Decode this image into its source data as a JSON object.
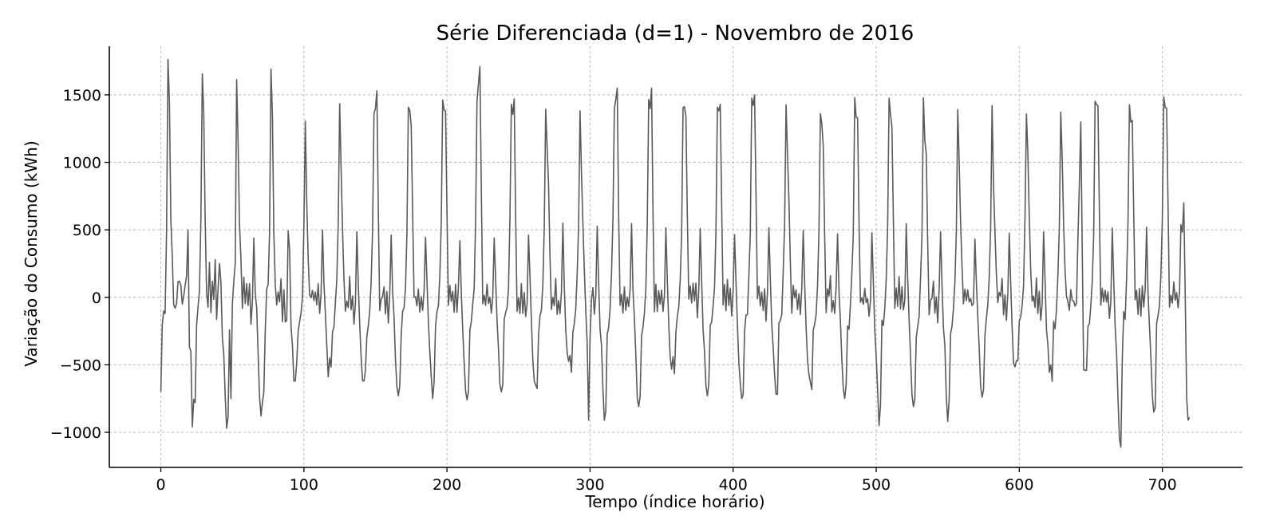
{
  "chart_data": {
    "type": "line",
    "title": "Série Diferenciada (d=1) - Novembro de 2016",
    "xlabel": "Tempo (índice horário)",
    "ylabel": "Variação do Consumo (kWh)",
    "xlim": [
      -36,
      756
    ],
    "ylim": [
      -1260,
      1860
    ],
    "xticks": [
      0,
      100,
      200,
      300,
      400,
      500,
      600,
      700
    ],
    "yticks": [
      -1000,
      -500,
      0,
      500,
      1000,
      1500
    ],
    "ytick_labels": [
      "−1000",
      "−500",
      "0",
      "500",
      "1000",
      "1500"
    ],
    "grid": true,
    "line_color": "#5a5a5a",
    "series": [
      {
        "pattern_x": [
          0,
          1,
          2,
          3,
          4,
          5,
          6,
          7,
          8,
          9,
          10,
          11,
          12,
          13,
          14,
          15,
          16,
          17,
          18,
          19,
          20,
          21,
          22,
          23
        ],
        "pattern_y": [
          -230,
          -170,
          -110,
          120,
          520,
          1420,
          820,
          280,
          60,
          -60,
          30,
          -60,
          100,
          -80,
          40,
          -130,
          20,
          480,
          90,
          -180,
          -420,
          -740,
          -930,
          -790
        ],
        "x": [
          0,
          1,
          3,
          6,
          8,
          10,
          13,
          15,
          17,
          19,
          21,
          22,
          24,
          27,
          30,
          32,
          34,
          36,
          38,
          41,
          43,
          46,
          49,
          52,
          54,
          56,
          58,
          61,
          63,
          65,
          67,
          70,
          72,
          74,
          78,
          80,
          82,
          85,
          88,
          90,
          93,
          95,
          97,
          99
        ],
        "y": [
          -700,
          -200,
          -120,
          1450,
          300,
          -80,
          120,
          -50,
          90,
          500,
          -400,
          -960,
          -780,
          50,
          1360,
          30,
          260,
          120,
          280,
          250,
          -300,
          -970,
          -750,
          250,
          1150,
          280,
          150,
          -60,
          -200,
          440,
          -80,
          -880,
          -700,
          60,
          1340,
          90,
          40,
          -180,
          -170,
          350,
          -620,
          -480,
          -180,
          0
        ],
        "peaks": [
          {
            "x": 6,
            "y": 1450
          },
          {
            "x": 30,
            "y": 1360
          },
          {
            "x": 54,
            "y": 1150
          },
          {
            "x": 78,
            "y": 1340
          },
          {
            "x": 102,
            "y": 700
          },
          {
            "x": 127,
            "y": 500
          },
          {
            "x": 151,
            "y": 1530
          },
          {
            "x": 175,
            "y": 1270
          },
          {
            "x": 199,
            "y": 1380
          },
          {
            "x": 223,
            "y": 1710
          },
          {
            "x": 247,
            "y": 1470
          },
          {
            "x": 271,
            "y": 830
          },
          {
            "x": 295,
            "y": 550
          },
          {
            "x": 319,
            "y": 1550
          },
          {
            "x": 343,
            "y": 1550
          },
          {
            "x": 367,
            "y": 1340
          },
          {
            "x": 391,
            "y": 1430
          },
          {
            "x": 415,
            "y": 1500
          },
          {
            "x": 439,
            "y": 720
          },
          {
            "x": 463,
            "y": 1120
          },
          {
            "x": 487,
            "y": 1330
          },
          {
            "x": 511,
            "y": 1260
          },
          {
            "x": 535,
            "y": 1060
          },
          {
            "x": 559,
            "y": 550
          },
          {
            "x": 583,
            "y": 490
          },
          {
            "x": 607,
            "y": 590
          },
          {
            "x": 631,
            "y": 540
          },
          {
            "x": 643,
            "y": 1300
          },
          {
            "x": 655,
            "y": 1420
          },
          {
            "x": 679,
            "y": 1310
          },
          {
            "x": 703,
            "y": 1400
          },
          {
            "x": 715,
            "y": 700
          }
        ],
        "troughs": [
          {
            "x": 22,
            "y": -960
          },
          {
            "x": 46,
            "y": -970
          },
          {
            "x": 70,
            "y": -880
          },
          {
            "x": 94,
            "y": -620
          },
          {
            "x": 118,
            "y": -450
          },
          {
            "x": 142,
            "y": -620
          },
          {
            "x": 166,
            "y": -730
          },
          {
            "x": 190,
            "y": -750
          },
          {
            "x": 214,
            "y": -760
          },
          {
            "x": 238,
            "y": -700
          },
          {
            "x": 262,
            "y": -650
          },
          {
            "x": 286,
            "y": -430
          },
          {
            "x": 299,
            "y": -910
          },
          {
            "x": 334,
            "y": -810
          },
          {
            "x": 358,
            "y": -440
          },
          {
            "x": 382,
            "y": -730
          },
          {
            "x": 406,
            "y": -750
          },
          {
            "x": 430,
            "y": -720
          },
          {
            "x": 454,
            "y": -630
          },
          {
            "x": 478,
            "y": -750
          },
          {
            "x": 502,
            "y": -950
          },
          {
            "x": 526,
            "y": -810
          },
          {
            "x": 550,
            "y": -920
          },
          {
            "x": 574,
            "y": -740
          },
          {
            "x": 598,
            "y": -470
          },
          {
            "x": 622,
            "y": -500
          },
          {
            "x": 646,
            "y": -540
          },
          {
            "x": 671,
            "y": -1110
          },
          {
            "x": 694,
            "y": -850
          },
          {
            "x": 719,
            "y": -890
          }
        ]
      }
    ]
  }
}
